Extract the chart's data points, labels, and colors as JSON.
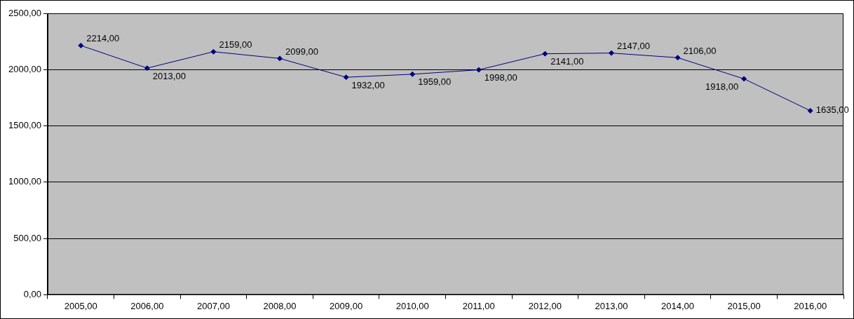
{
  "chart_data": {
    "type": "line",
    "categories": [
      "2005,00",
      "2006,00",
      "2007,00",
      "2008,00",
      "2009,00",
      "2010,00",
      "2011,00",
      "2012,00",
      "2013,00",
      "2014,00",
      "2015,00",
      "2016,00"
    ],
    "series": [
      {
        "color": "#000080",
        "values": [
          2214,
          2013,
          2159,
          2099,
          1932,
          1959,
          1998,
          2141,
          2147,
          2106,
          1918,
          1635
        ],
        "value_labels": [
          "2214,00",
          "2013,00",
          "2159,00",
          "2099,00",
          "1932,00",
          "1959,00",
          "1998,00",
          "2141,00",
          "2147,00",
          "2106,00",
          "1918,00",
          "1635,00"
        ]
      }
    ],
    "ylim": [
      0,
      2500
    ],
    "yticks": [
      {
        "value": 0,
        "label": "0,00"
      },
      {
        "value": 500,
        "label": "500,00"
      },
      {
        "value": 1000,
        "label": "1000,00"
      },
      {
        "value": 1500,
        "label": "1500,00"
      },
      {
        "value": 2000,
        "label": "2000,00"
      },
      {
        "value": 2500,
        "label": "2500,00"
      }
    ],
    "grid": "y",
    "legend": false,
    "marker": "diamond",
    "line_style": "solid"
  }
}
